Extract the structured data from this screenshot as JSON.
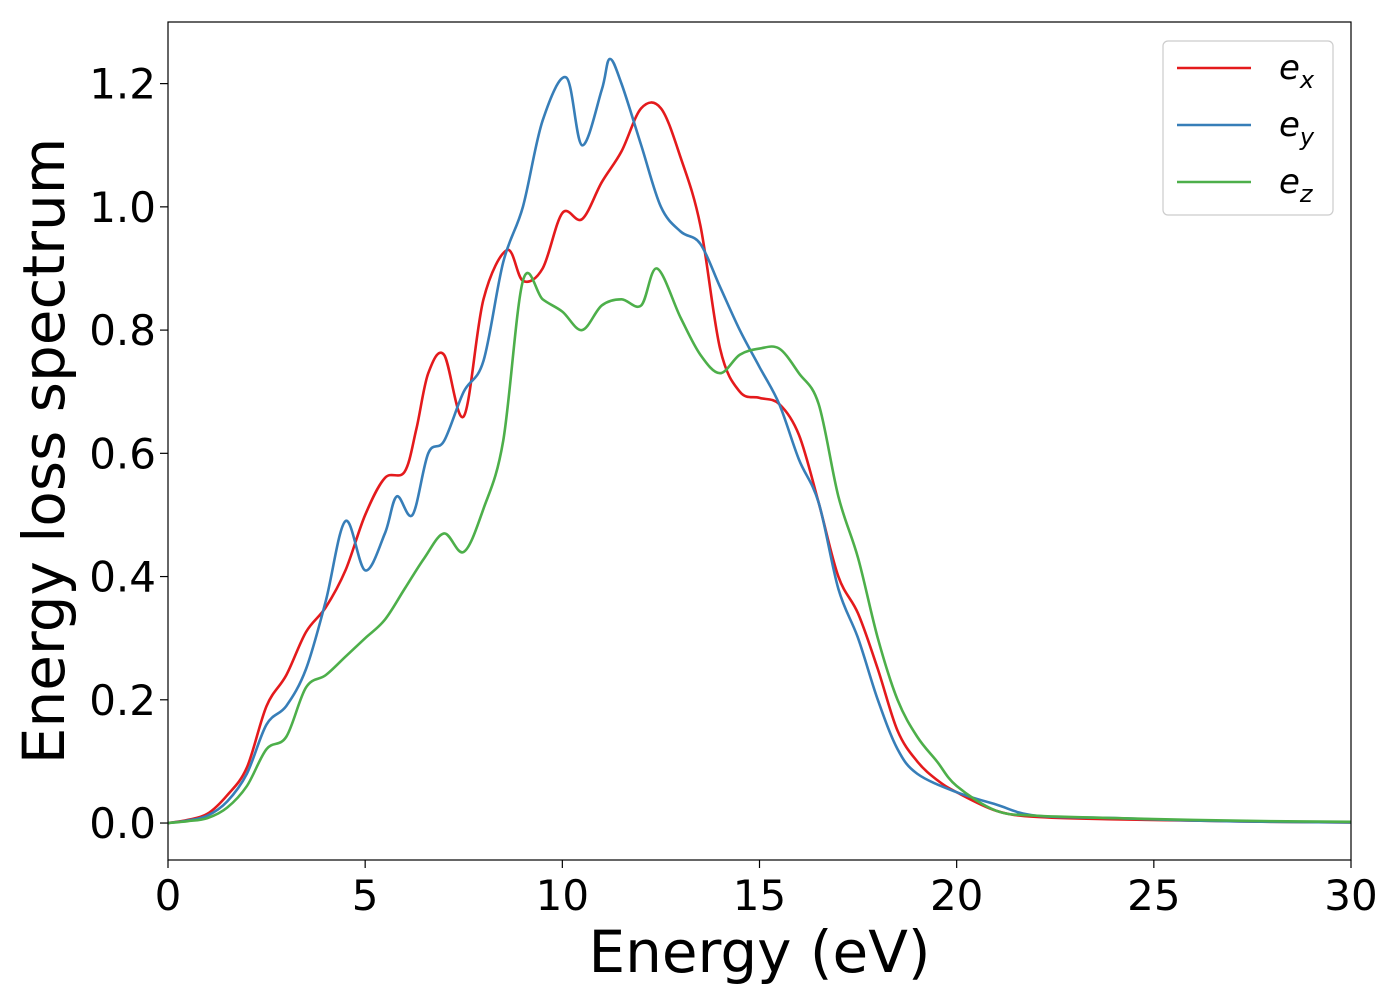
{
  "chart_data": {
    "type": "line",
    "xlabel": "Energy (eV)",
    "ylabel": "Energy loss spectrum",
    "xlim": [
      0,
      30
    ],
    "ylim": [
      -0.06,
      1.3
    ],
    "xticks": [
      0,
      5,
      10,
      15,
      20,
      25,
      30
    ],
    "xtick_labels": [
      "0",
      "5",
      "10",
      "15",
      "20",
      "25",
      "30"
    ],
    "yticks": [
      0.0,
      0.2,
      0.4,
      0.6,
      0.8,
      1.0,
      1.2
    ],
    "ytick_labels": [
      "0.0",
      "0.2",
      "0.4",
      "0.6",
      "0.8",
      "1.0",
      "1.2"
    ],
    "grid": false,
    "legend_position": "top-right",
    "series": [
      {
        "name": "e_x",
        "label_base": "e",
        "label_sub": "x",
        "color": "#e41a1c",
        "x": [
          0,
          0.5,
          1.0,
          1.5,
          2.0,
          2.5,
          3.0,
          3.5,
          4.0,
          4.5,
          5.0,
          5.5,
          6.0,
          6.3,
          6.6,
          7.0,
          7.5,
          8.0,
          8.6,
          9.0,
          9.5,
          10.0,
          10.5,
          11.0,
          11.5,
          12.0,
          12.5,
          13.0,
          13.5,
          14.0,
          14.5,
          15.0,
          15.5,
          16.0,
          16.5,
          17.0,
          17.5,
          18.0,
          18.5,
          19.0,
          19.5,
          20.0,
          21.0,
          22.0,
          24.0,
          26.0,
          28.0,
          30.0
        ],
        "y": [
          0,
          0.005,
          0.015,
          0.045,
          0.09,
          0.19,
          0.24,
          0.31,
          0.35,
          0.41,
          0.5,
          0.56,
          0.57,
          0.64,
          0.73,
          0.76,
          0.66,
          0.85,
          0.93,
          0.88,
          0.9,
          0.99,
          0.98,
          1.04,
          1.09,
          1.16,
          1.16,
          1.08,
          0.97,
          0.77,
          0.7,
          0.69,
          0.68,
          0.63,
          0.52,
          0.4,
          0.34,
          0.25,
          0.15,
          0.1,
          0.07,
          0.05,
          0.02,
          0.01,
          0.006,
          0.004,
          0.002,
          0.001
        ]
      },
      {
        "name": "e_y",
        "label_base": "e",
        "label_sub": "y",
        "color": "#377eb8",
        "x": [
          0,
          0.5,
          1.0,
          1.5,
          2.0,
          2.5,
          3.0,
          3.5,
          4.0,
          4.5,
          5.0,
          5.5,
          5.8,
          6.2,
          6.6,
          7.0,
          7.5,
          8.0,
          8.5,
          9.0,
          9.5,
          10.1,
          10.5,
          11.0,
          11.2,
          11.5,
          12.0,
          12.5,
          13.0,
          13.5,
          14.0,
          14.5,
          15.0,
          15.5,
          16.0,
          16.5,
          17.0,
          17.5,
          18.0,
          18.5,
          19.0,
          20.0,
          21.0,
          22.0,
          24.0,
          26.0,
          28.0,
          30.0
        ],
        "y": [
          0,
          0.004,
          0.012,
          0.035,
          0.08,
          0.16,
          0.19,
          0.25,
          0.36,
          0.49,
          0.41,
          0.47,
          0.53,
          0.5,
          0.6,
          0.62,
          0.7,
          0.75,
          0.91,
          1.0,
          1.14,
          1.21,
          1.1,
          1.19,
          1.24,
          1.2,
          1.1,
          1.0,
          0.96,
          0.94,
          0.87,
          0.8,
          0.74,
          0.68,
          0.59,
          0.52,
          0.38,
          0.3,
          0.2,
          0.12,
          0.08,
          0.05,
          0.03,
          0.012,
          0.008,
          0.004,
          0.002,
          0.001
        ]
      },
      {
        "name": "e_z",
        "label_base": "e",
        "label_sub": "z",
        "color": "#4daf4a",
        "x": [
          0,
          0.5,
          1.0,
          1.5,
          2.0,
          2.5,
          3.0,
          3.5,
          4.0,
          4.5,
          5.0,
          5.5,
          6.0,
          6.5,
          7.0,
          7.5,
          8.0,
          8.5,
          9.0,
          9.5,
          10.0,
          10.5,
          11.0,
          11.5,
          12.0,
          12.4,
          13.0,
          13.5,
          14.0,
          14.5,
          15.0,
          15.5,
          16.0,
          16.5,
          17.0,
          17.5,
          18.0,
          18.5,
          19.0,
          19.5,
          20.0,
          21.0,
          22.0,
          24.0,
          26.0,
          28.0,
          30.0
        ],
        "y": [
          0,
          0.003,
          0.008,
          0.025,
          0.06,
          0.12,
          0.14,
          0.22,
          0.24,
          0.27,
          0.3,
          0.33,
          0.38,
          0.43,
          0.47,
          0.44,
          0.51,
          0.62,
          0.88,
          0.85,
          0.83,
          0.8,
          0.84,
          0.85,
          0.84,
          0.9,
          0.82,
          0.76,
          0.73,
          0.76,
          0.77,
          0.77,
          0.73,
          0.68,
          0.53,
          0.43,
          0.3,
          0.2,
          0.14,
          0.1,
          0.06,
          0.02,
          0.012,
          0.008,
          0.005,
          0.003,
          0.002
        ]
      }
    ]
  }
}
